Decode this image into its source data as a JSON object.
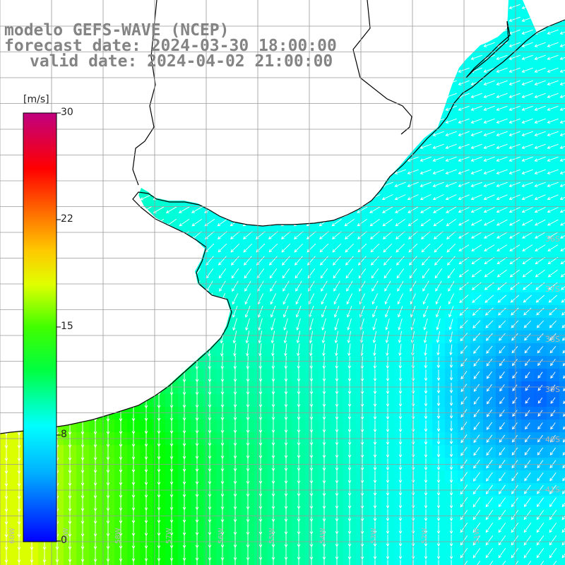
{
  "title": {
    "line1": "modelo GEFS-WAVE (NCEP)",
    "line2": "forecast date: 2024-03-30 18:00:00",
    "line3": "valid date: 2024-04-02 21:00:00"
  },
  "colorbar": {
    "unit": "[m/s]",
    "min": 0,
    "max": 30,
    "ticks": [
      "30",
      "22",
      "15",
      "8",
      "0"
    ],
    "tick_values": [
      30,
      22,
      15,
      8,
      0
    ],
    "colors": [
      "#0000ff",
      "#00c8ff",
      "#00ffff",
      "#00ff00",
      "#c8ff00",
      "#ffff00",
      "#ff9600",
      "#ff0000",
      "#c00080"
    ]
  },
  "map": {
    "variable": "wind speed and direction",
    "lat_labels": [
      "36S",
      "37S",
      "38S",
      "39S",
      "40S",
      "41S"
    ],
    "lon_labels": [
      "60W",
      "59W",
      "58W",
      "57W",
      "56W",
      "55W",
      "54W",
      "53W",
      "52W",
      "51W"
    ],
    "land_color": "#ffffff",
    "grid_color": "#999999"
  }
}
